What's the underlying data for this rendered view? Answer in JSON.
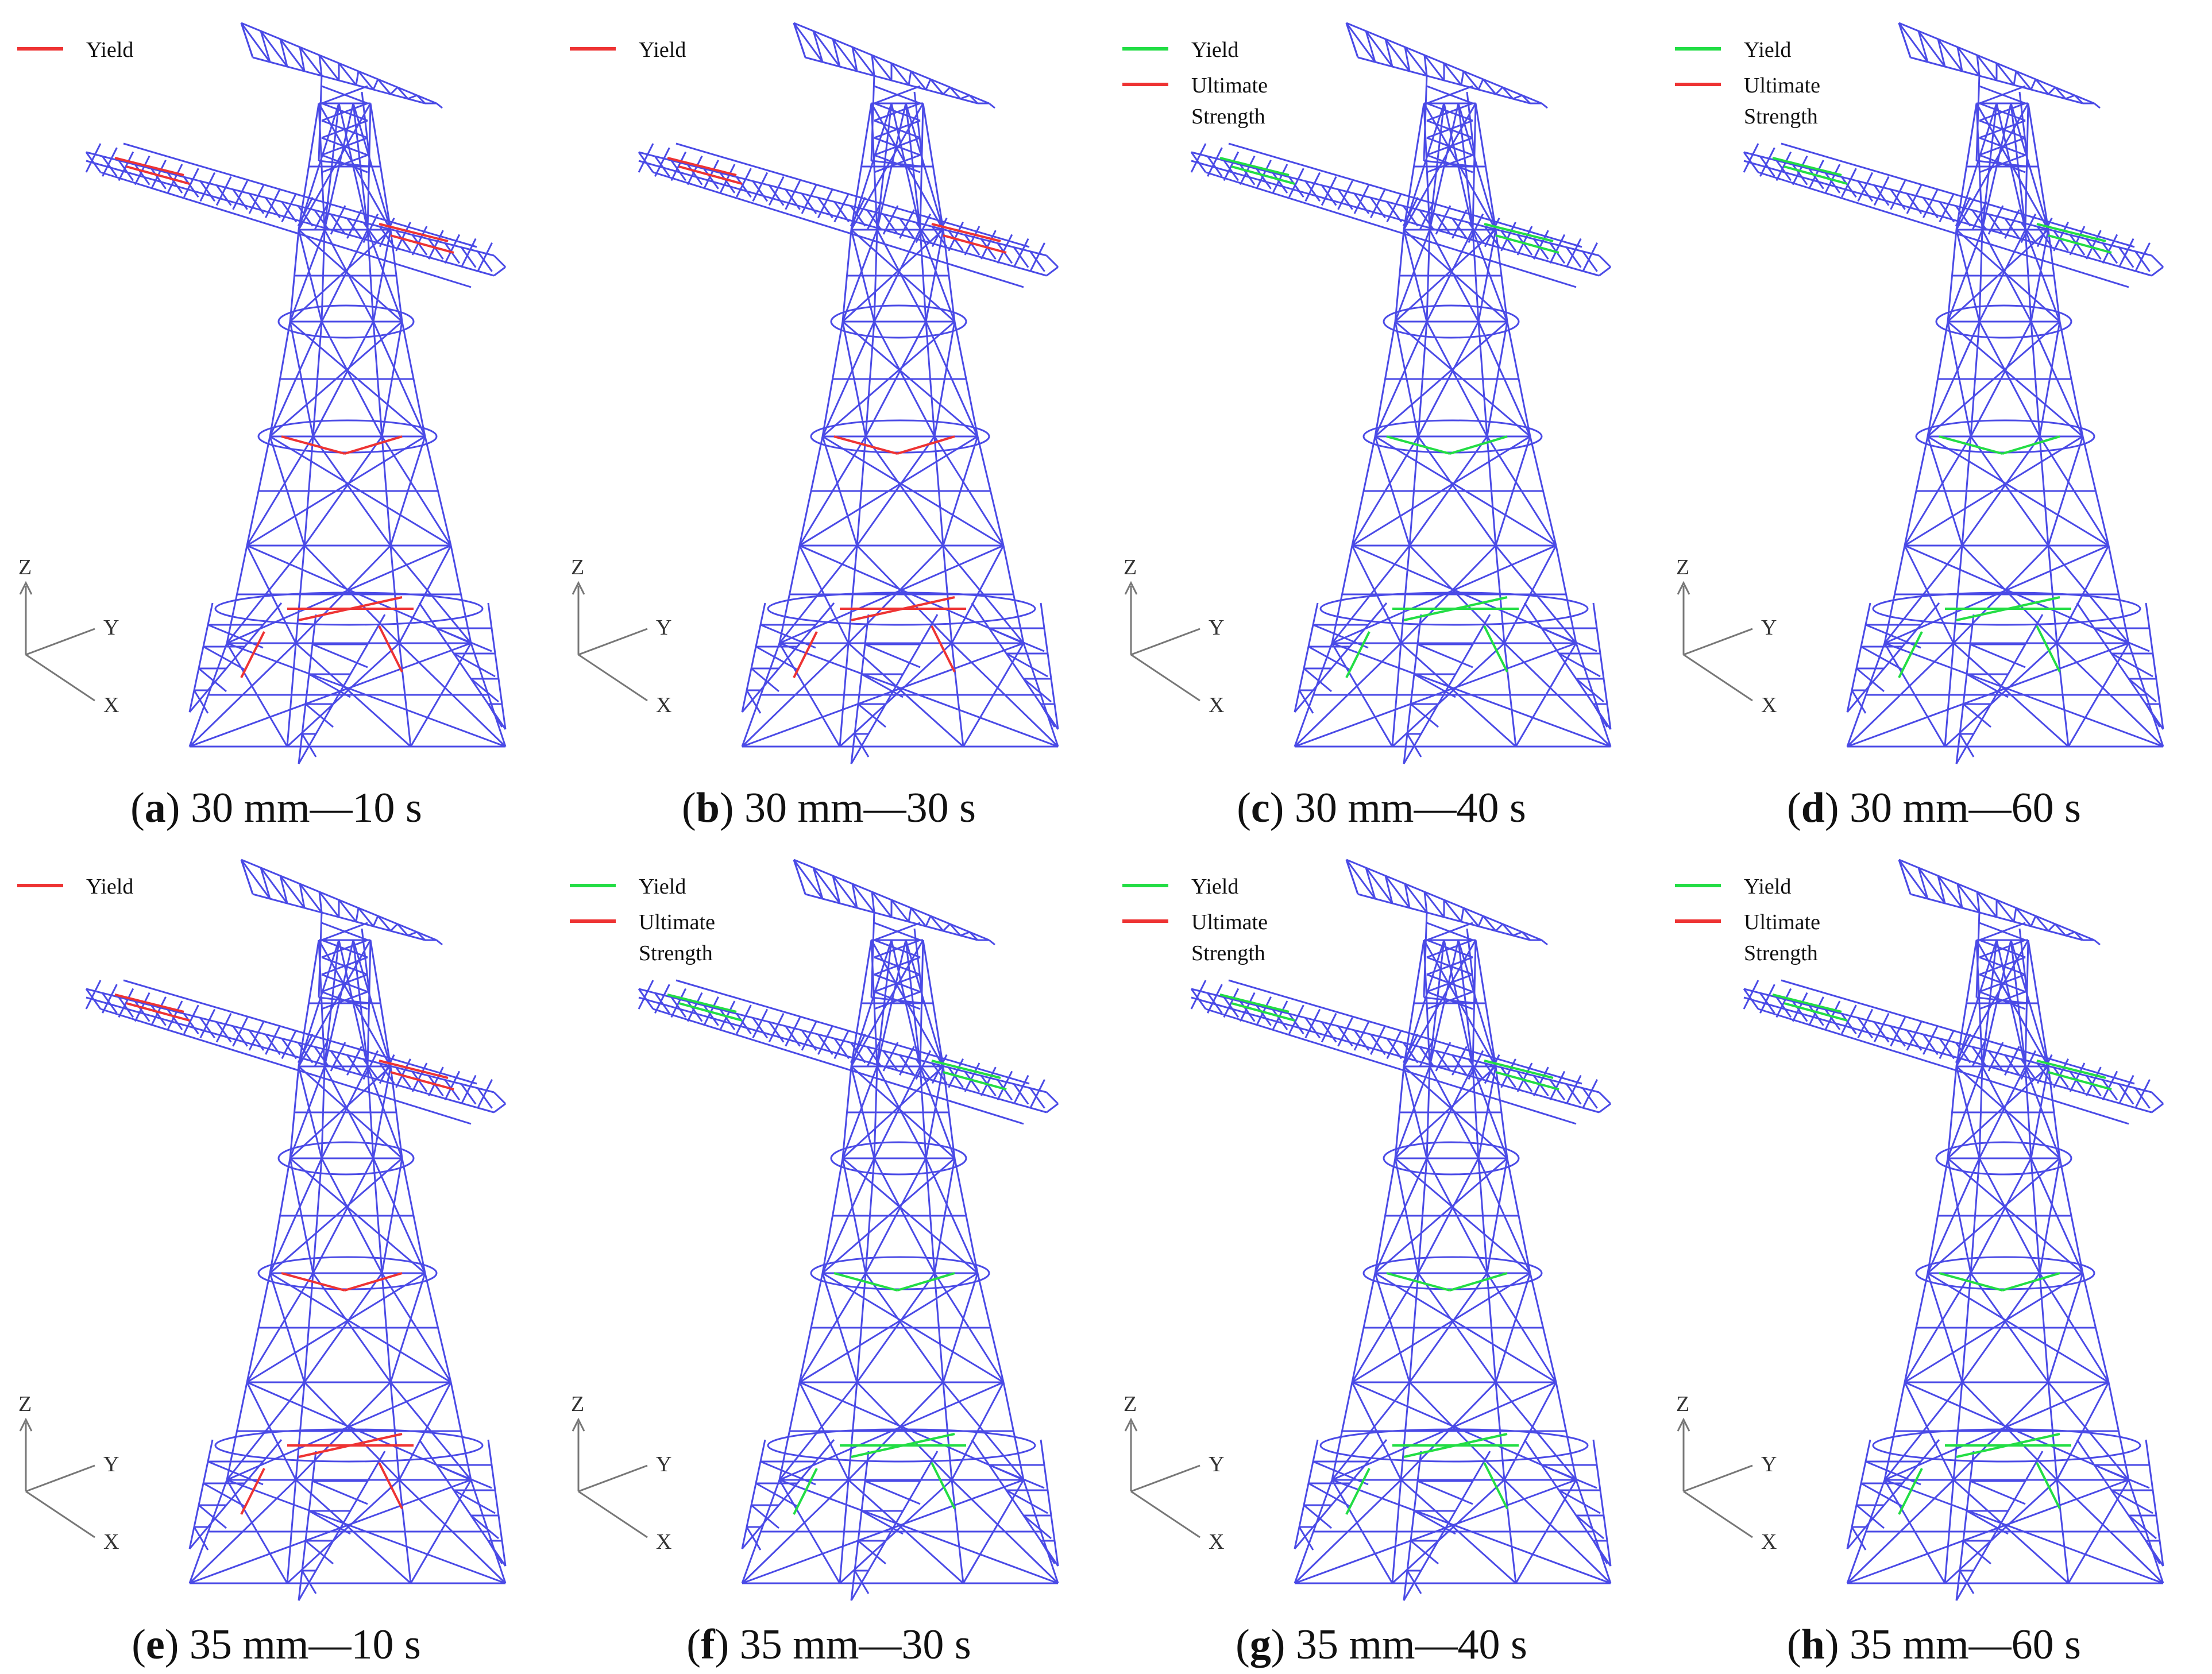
{
  "colors": {
    "member": "#4a4ae6",
    "yield_red": "#ee3333",
    "yield_green": "#22dd44",
    "ultimate_red": "#ee3333",
    "axis": "#777777"
  },
  "axes": {
    "z": "Z",
    "y": "Y",
    "x": "X"
  },
  "panels": [
    {
      "letter": "a",
      "label": "30 mm—10 s",
      "legend": [
        {
          "text": "Yield",
          "color": "#ee3333"
        }
      ]
    },
    {
      "letter": "b",
      "label": "30 mm—30 s",
      "legend": [
        {
          "text": "Yield",
          "color": "#ee3333"
        }
      ]
    },
    {
      "letter": "c",
      "label": "30 mm—40 s",
      "legend": [
        {
          "text": "Yield",
          "color": "#22dd44"
        },
        {
          "text": "Ultimate Strength",
          "color": "#ee3333"
        }
      ]
    },
    {
      "letter": "d",
      "label": "30 mm—60 s",
      "legend": [
        {
          "text": "Yield",
          "color": "#22dd44"
        },
        {
          "text": "Ultimate Strength",
          "color": "#ee3333"
        }
      ]
    },
    {
      "letter": "e",
      "label": "35 mm—10 s",
      "legend": [
        {
          "text": "Yield",
          "color": "#ee3333"
        }
      ]
    },
    {
      "letter": "f",
      "label": "35 mm—30 s",
      "legend": [
        {
          "text": "Yield",
          "color": "#22dd44"
        },
        {
          "text": "Ultimate Strength",
          "color": "#ee3333"
        }
      ]
    },
    {
      "letter": "g",
      "label": "35 mm—40 s",
      "legend": [
        {
          "text": "Yield",
          "color": "#22dd44"
        },
        {
          "text": "Ultimate Strength",
          "color": "#ee3333"
        }
      ]
    },
    {
      "letter": "h",
      "label": "35 mm—60 s",
      "legend": [
        {
          "text": "Yield",
          "color": "#22dd44"
        },
        {
          "text": "Ultimate Strength",
          "color": "#ee3333"
        }
      ]
    }
  ]
}
